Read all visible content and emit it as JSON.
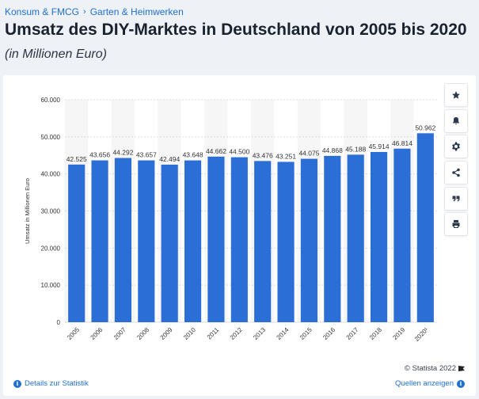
{
  "breadcrumb": {
    "item1": "Konsum & FMCG",
    "separator": "›",
    "item2": "Garten & Heimwerken"
  },
  "header": {
    "title": "Umsatz des DIY-Marktes in Deutschland von 2005 bis 2020",
    "subtitle": "(in Millionen Euro)"
  },
  "toolbar": {
    "icons": [
      "star-icon",
      "bell-icon",
      "gear-icon",
      "share-icon",
      "quote-icon",
      "print-icon"
    ]
  },
  "footer": {
    "copyright": "© Statista 2022",
    "details_link": "Details zur Statistik",
    "sources_link": "Quellen anzeigen"
  },
  "colors": {
    "bar": "#2b6ed6",
    "accent": "#1f6fd1",
    "stripe": "#f6f6f6"
  },
  "chart_data": {
    "type": "bar",
    "categories": [
      "2005",
      "2006",
      "2007",
      "2008",
      "2009",
      "2010",
      "2011",
      "2012",
      "2013",
      "2014",
      "2015",
      "2016",
      "2017",
      "2018",
      "2019",
      "2020¹"
    ],
    "values": [
      42525,
      43656,
      44292,
      43657,
      42494,
      43648,
      44662,
      44500,
      43476,
      43251,
      44075,
      44868,
      45188,
      45914,
      46814,
      50962
    ],
    "value_labels": [
      "42.525",
      "43.656",
      "44.292",
      "43.657",
      "42.494",
      "43.648",
      "44.662",
      "44.500",
      "43.476",
      "43.251",
      "44.075",
      "44.868",
      "45.188",
      "45.914",
      "46.814",
      "50.962"
    ],
    "yticks": [
      0,
      10000,
      20000,
      30000,
      40000,
      50000,
      60000
    ],
    "ytick_labels": [
      "0",
      "10.000",
      "20.000",
      "30.000",
      "40.000",
      "50.000",
      "60.000"
    ],
    "ylim": [
      0,
      60000
    ],
    "ylabel": "Umsatz in Millionen Euro",
    "xlabel": "",
    "grid": true
  }
}
